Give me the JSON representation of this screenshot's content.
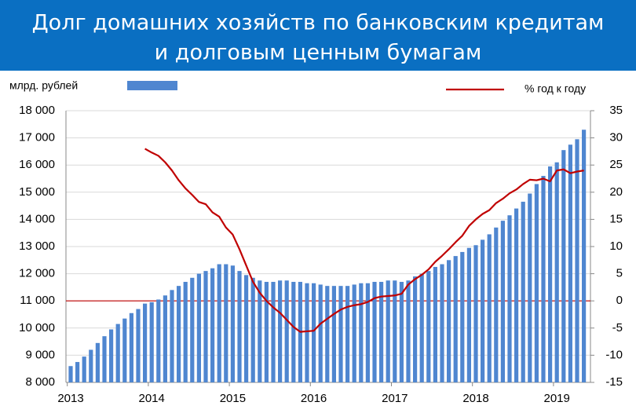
{
  "chart_data": {
    "type": "bar_line",
    "title_lines": [
      "Долг домашних хозяйств по банковским кредитам",
      "и долговым ценным бумагам"
    ],
    "y_label": "млрд. рублей",
    "categories": [
      "2013",
      null,
      null,
      null,
      null,
      null,
      null,
      null,
      null,
      null,
      null,
      null,
      "2014",
      null,
      null,
      null,
      null,
      null,
      null,
      null,
      null,
      null,
      null,
      null,
      "2015",
      null,
      null,
      null,
      null,
      null,
      null,
      null,
      null,
      null,
      null,
      null,
      "2016",
      null,
      null,
      null,
      null,
      null,
      null,
      null,
      null,
      null,
      null,
      null,
      "2017",
      null,
      null,
      null,
      null,
      null,
      null,
      null,
      null,
      null,
      null,
      null,
      "2018",
      null,
      null,
      null,
      null,
      null,
      null,
      null,
      null,
      null,
      null,
      null,
      "2019",
      null,
      null,
      null,
      null
    ],
    "series": [
      {
        "type": "bar",
        "color": "#4f86d0",
        "values": [
          8600,
          8750,
          8950,
          9200,
          9450,
          9700,
          9950,
          10150,
          10350,
          10550,
          10700,
          10900,
          10950,
          11050,
          11200,
          11400,
          11550,
          11700,
          11850,
          12000,
          12100,
          12200,
          12350,
          12350,
          12300,
          12100,
          11950,
          11850,
          11750,
          11700,
          11700,
          11750,
          11750,
          11700,
          11700,
          11650,
          11650,
          11600,
          11550,
          11550,
          11550,
          11550,
          11600,
          11650,
          11650,
          11700,
          11700,
          11750,
          11750,
          11700,
          11750,
          11900,
          12000,
          12100,
          12250,
          12350,
          12500,
          12650,
          12800,
          12950,
          13050,
          13250,
          13450,
          13700,
          13950,
          14150,
          14400,
          14650,
          14950,
          15300,
          15600,
          15950,
          16100,
          16550,
          16750,
          16950,
          17300
        ]
      },
      {
        "type": "line",
        "name": "% год к году",
        "color": "#c00000",
        "axis": "y2",
        "values": [
          null,
          null,
          null,
          null,
          null,
          null,
          null,
          null,
          null,
          null,
          null,
          28,
          27.3,
          26.7,
          25.5,
          24,
          22.2,
          20.7,
          19.5,
          18.2,
          17.8,
          16.3,
          15.5,
          13.5,
          12.2,
          9.5,
          6.5,
          3.5,
          1.5,
          0,
          -1.2,
          -2.2,
          -3.5,
          -4.8,
          -5.7,
          -5.6,
          -5.5,
          -4.2,
          -3.3,
          -2.4,
          -1.6,
          -1.1,
          -0.8,
          -0.6,
          -0.2,
          0.5,
          0.8,
          0.9,
          1.0,
          1.3,
          3.0,
          4.0,
          4.8,
          5.8,
          7.2,
          8.3,
          9.5,
          10.8,
          12,
          13.8,
          15,
          16,
          16.7,
          18,
          18.8,
          19.8,
          20.5,
          21.5,
          22.3,
          22.2,
          22.5,
          22,
          24,
          24.2,
          23.5,
          23.8,
          24
        ]
      }
    ],
    "ylim": [
      8000,
      18000
    ],
    "yticks": [
      {
        "value": 8000,
        "label": "8 000"
      },
      {
        "value": 9000,
        "label": "9 000"
      },
      {
        "value": 10000,
        "label": "10 000"
      },
      {
        "value": 11000,
        "label": "11 000"
      },
      {
        "value": 12000,
        "label": "12 000"
      },
      {
        "value": 13000,
        "label": "13 000"
      },
      {
        "value": 14000,
        "label": "14 000"
      },
      {
        "value": 15000,
        "label": "15 000"
      },
      {
        "value": 16000,
        "label": "16 000"
      },
      {
        "value": 17000,
        "label": "17 000"
      },
      {
        "value": 18000,
        "label": "18 000"
      }
    ],
    "y2lim": [
      -15,
      35
    ],
    "y2ticks": [
      -15,
      -10,
      -5,
      0,
      5,
      10,
      15,
      20,
      25,
      30,
      35
    ],
    "reference_line": {
      "axis": "y2",
      "value": 0,
      "color": "#c00000"
    },
    "grid": true
  }
}
